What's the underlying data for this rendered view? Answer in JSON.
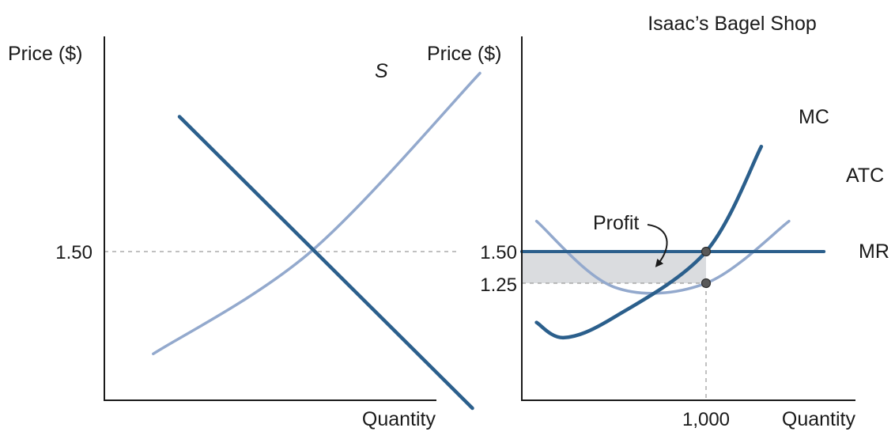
{
  "colors": {
    "dark_curve": "#2b5f8c",
    "light_curve": "#93a9cd",
    "profit_fill": "#dadcdf",
    "point_fill": "#595959",
    "guide_line": "#9a9a9a"
  },
  "chart_data": [
    {
      "type": "line",
      "panel": "market",
      "title": "",
      "xlabel": "Quantity",
      "ylabel": "Price ($)",
      "y_ticks": [
        {
          "value": 1.5,
          "label": "1.50"
        }
      ],
      "grid": false,
      "series": [
        {
          "name": "S",
          "role": "supply",
          "style": "light",
          "points": [
            [
              0.13,
              1.265
            ],
            [
              0.55,
              1.5
            ],
            [
              1.0,
              1.91
            ]
          ]
        },
        {
          "role": "demand",
          "style": "dark",
          "points": [
            [
              0.2,
              1.81
            ],
            [
              0.55,
              1.5
            ],
            [
              0.98,
              1.14
            ]
          ]
        }
      ],
      "equilibrium": {
        "price": 1.5
      }
    },
    {
      "type": "line",
      "panel": "firm",
      "title": "Isaac’s Bagel Shop",
      "xlabel": "Quantity",
      "ylabel": "Price ($)",
      "x_ticks": [
        {
          "value": 1000,
          "label": "1,000"
        }
      ],
      "y_ticks": [
        {
          "value": 1.5,
          "label": "1.50"
        },
        {
          "value": 1.25,
          "label": "1.25"
        }
      ],
      "grid": false,
      "series": [
        {
          "name": "MC",
          "style": "dark",
          "points": [
            [
              80,
              0.94
            ],
            [
              230,
              0.82
            ],
            [
              500,
              0.98
            ],
            [
              1000,
              1.5
            ],
            [
              1300,
              2.33
            ]
          ]
        },
        {
          "name": "ATC",
          "style": "light",
          "points": [
            [
              80,
              1.74
            ],
            [
              500,
              1.22
            ],
            [
              1000,
              1.25
            ],
            [
              1450,
              1.74
            ]
          ]
        },
        {
          "name": "MR",
          "style": "dark",
          "points": [
            [
              0,
              1.5
            ],
            [
              1640,
              1.5
            ]
          ]
        }
      ],
      "points": [
        {
          "x": 1000,
          "y": 1.5
        },
        {
          "x": 1000,
          "y": 1.25
        }
      ],
      "shaded_region": {
        "label": "Profit",
        "x": [
          0,
          1000
        ],
        "y": [
          1.25,
          1.5
        ]
      }
    }
  ]
}
